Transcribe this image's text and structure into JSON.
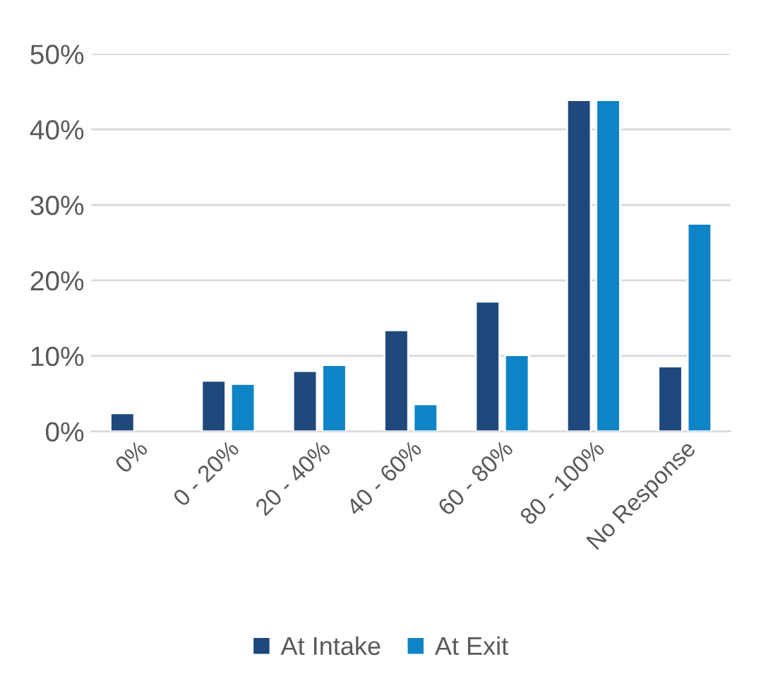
{
  "chart_data": {
    "type": "bar",
    "categories": [
      "0%",
      "0 - 20%",
      "20 - 40%",
      "40 - 60%",
      "60 - 80%",
      "80 - 100%",
      "No Response"
    ],
    "series": [
      {
        "name": "At Intake",
        "color": "#1f497d",
        "values": [
          2.4,
          6.7,
          8.0,
          13.4,
          17.2,
          43.9,
          8.6
        ]
      },
      {
        "name": "At Exit",
        "color": "#0e84c6",
        "values": [
          null,
          6.3,
          8.8,
          3.6,
          10.1,
          43.9,
          27.5
        ]
      }
    ],
    "ylim": [
      0,
      50
    ],
    "yticks": [
      {
        "value": 0,
        "label": "0%"
      },
      {
        "value": 10,
        "label": "10%"
      },
      {
        "value": 20,
        "label": "20%"
      },
      {
        "value": 30,
        "label": "30%"
      },
      {
        "value": 40,
        "label": "40%"
      },
      {
        "value": 50,
        "label": "50%"
      }
    ],
    "grid": "y",
    "legend": "bottom"
  }
}
